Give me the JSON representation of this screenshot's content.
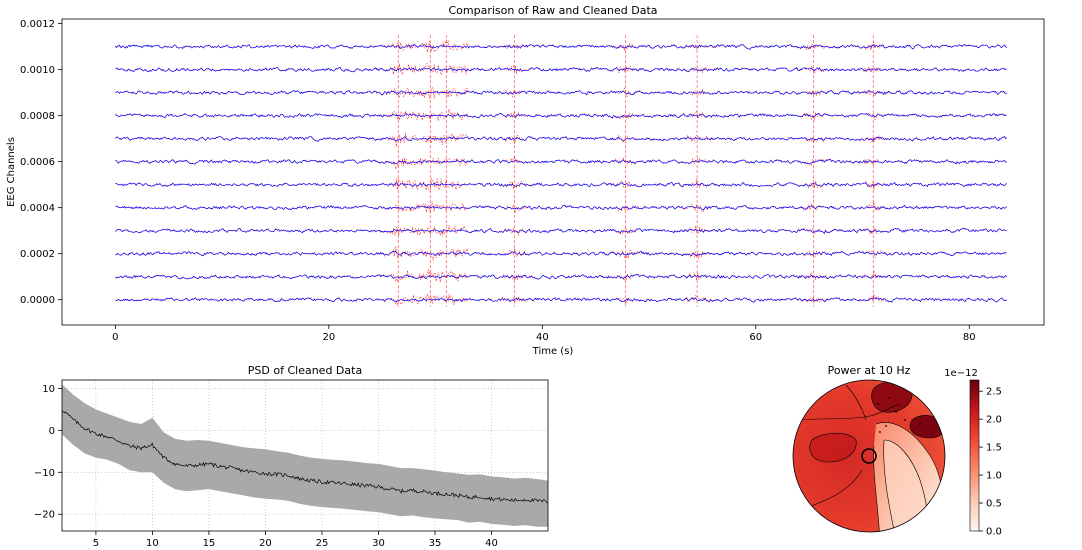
{
  "chart_data": [
    {
      "type": "line",
      "title": "Comparison of Raw and Cleaned Data",
      "xlabel": "Time (s)",
      "ylabel": "EEG Channels",
      "xlim": [
        -5,
        87
      ],
      "ylim": [
        -0.00011,
        0.00122
      ],
      "x_ticks": [
        0,
        20,
        40,
        60,
        80
      ],
      "x_tick_labels": [
        "0",
        "20",
        "40",
        "60",
        "80"
      ],
      "y_ticks": [
        0.0,
        0.0002,
        0.0004,
        0.0006,
        0.0008,
        0.001,
        0.0012
      ],
      "y_tick_labels": [
        "0.0000",
        "0.0002",
        "0.0004",
        "0.0006",
        "0.0008",
        "0.0010",
        "0.0012"
      ],
      "x_range": [
        0,
        83.5
      ],
      "channel_offsets": [
        0.0,
        0.0001,
        0.0002,
        0.0003,
        0.0004,
        0.0005,
        0.0006,
        0.0007,
        0.0008,
        0.0009,
        0.001,
        0.0011
      ],
      "artifact_times": [
        26.5,
        29.5,
        31.0,
        37.4,
        47.8,
        54.5,
        65.4,
        71.0
      ],
      "series": [
        {
          "color": "#ff0000",
          "style": "dashed"
        },
        {
          "color": "#0000ff",
          "style": "solid"
        }
      ],
      "grid": false
    },
    {
      "type": "area",
      "title": "PSD of Cleaned Data",
      "xlim": [
        2,
        45
      ],
      "ylim": [
        -24,
        12
      ],
      "x_ticks": [
        5,
        10,
        15,
        20,
        25,
        30,
        35,
        40
      ],
      "x_tick_labels": [
        "5",
        "10",
        "15",
        "20",
        "25",
        "30",
        "35",
        "40"
      ],
      "y_ticks": [
        -20,
        -10,
        0,
        10
      ],
      "y_tick_labels": [
        "−20",
        "−10",
        "0",
        "10"
      ],
      "x": [
        2,
        3,
        4,
        5,
        6,
        7,
        8,
        9,
        10,
        11,
        12,
        13,
        14,
        15,
        16,
        17,
        18,
        19,
        20,
        21,
        22,
        23,
        24,
        25,
        26,
        27,
        28,
        29,
        30,
        31,
        32,
        33,
        34,
        35,
        36,
        37,
        38,
        39,
        40,
        41,
        42,
        43,
        44,
        45
      ],
      "mean": [
        5,
        2.5,
        0.5,
        -0.8,
        -1.5,
        -2.5,
        -3.8,
        -4.2,
        -3.5,
        -6.5,
        -8,
        -8.5,
        -8.3,
        -8,
        -8.6,
        -9,
        -9.6,
        -10,
        -10.3,
        -10.5,
        -10.7,
        -11.5,
        -12,
        -12.3,
        -12.5,
        -12.7,
        -13,
        -13.2,
        -13.5,
        -14,
        -14.5,
        -14.3,
        -14.6,
        -15,
        -15.2,
        -15.5,
        -16,
        -15.8,
        -16.3,
        -16.5,
        -16.7,
        -16.5,
        -16.8,
        -17
      ],
      "upper": [
        11,
        8.5,
        6.5,
        5,
        4,
        3,
        2,
        1.5,
        3,
        -0.5,
        -2,
        -2.5,
        -2.3,
        -2.5,
        -3,
        -3.5,
        -4,
        -4.3,
        -4.5,
        -5,
        -5.3,
        -6,
        -6.5,
        -6.8,
        -7,
        -7.2,
        -7.5,
        -7.8,
        -8,
        -8.5,
        -9,
        -9,
        -9.3,
        -9.6,
        -10,
        -10.3,
        -10.6,
        -10.5,
        -11,
        -11.2,
        -11.5,
        -11.3,
        -11.6,
        -12
      ],
      "lower": [
        -1,
        -3.5,
        -5.5,
        -6.5,
        -7,
        -8,
        -9.5,
        -10,
        -10,
        -12.5,
        -14,
        -14.5,
        -14.3,
        -14,
        -14.5,
        -15,
        -15.5,
        -16,
        -16.3,
        -16.5,
        -16.8,
        -17.5,
        -18,
        -18.3,
        -18.5,
        -18.7,
        -19,
        -19.3,
        -19.5,
        -20,
        -20.5,
        -20.3,
        -20.7,
        -21,
        -21.2,
        -21.4,
        -22,
        -21.8,
        -22.3,
        -22.5,
        -22.8,
        -22.6,
        -23,
        -23
      ],
      "line_color": "#000000",
      "band_color": "#a9a9a9",
      "grid": true
    },
    {
      "type": "heatmap",
      "title": "Power at 10 Hz",
      "colormap": "Reds",
      "colorbar": {
        "range": [
          0.0,
          2.7
        ],
        "exponent_label": "1e−12",
        "ticks": [
          0.0,
          0.5,
          1.0,
          1.5,
          2.0,
          2.5
        ],
        "tick_labels": [
          "0.0",
          "0.5",
          "1.0",
          "1.5",
          "2.0",
          "2.5"
        ]
      },
      "min_color": "#fff5f0",
      "max_color": "#67000d"
    }
  ]
}
